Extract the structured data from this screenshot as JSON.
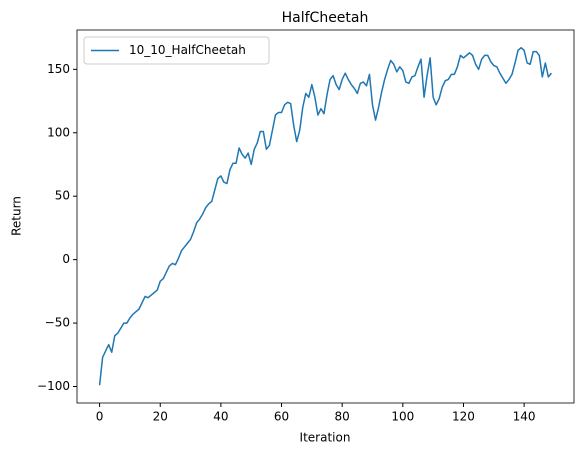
{
  "chart_data": {
    "type": "line",
    "title": "HalfCheetah",
    "x_label": "Iteration",
    "y_label": "Return",
    "x": [
      0,
      1,
      2,
      3,
      4,
      5,
      6,
      7,
      8,
      9,
      10,
      11,
      12,
      13,
      14,
      15,
      16,
      17,
      18,
      19,
      20,
      21,
      22,
      23,
      24,
      25,
      26,
      27,
      28,
      29,
      30,
      31,
      32,
      33,
      34,
      35,
      36,
      37,
      38,
      39,
      40,
      41,
      42,
      43,
      44,
      45,
      46,
      47,
      48,
      49,
      50,
      51,
      52,
      53,
      54,
      55,
      56,
      57,
      58,
      59,
      60,
      61,
      62,
      63,
      64,
      65,
      66,
      67,
      68,
      69,
      70,
      71,
      72,
      73,
      74,
      75,
      76,
      77,
      78,
      79,
      80,
      81,
      82,
      83,
      84,
      85,
      86,
      87,
      88,
      89,
      90,
      91,
      92,
      93,
      94,
      95,
      96,
      97,
      98,
      99,
      100,
      101,
      102,
      103,
      104,
      105,
      106,
      107,
      108,
      109,
      110,
      111,
      112,
      113,
      114,
      115,
      116,
      117,
      118,
      119,
      120,
      121,
      122,
      123,
      124,
      125,
      126,
      127,
      128,
      129,
      130,
      131,
      132,
      133,
      134,
      135,
      136,
      137,
      138,
      139,
      140,
      141,
      142,
      143,
      144,
      145,
      146,
      147,
      148,
      149
    ],
    "series": [
      {
        "name": "10_10_HalfCheetah",
        "color": "#1f77b4",
        "values": [
          -99,
          -77,
          -72,
          -67,
          -73,
          -60,
          -58,
          -54,
          -50,
          -50,
          -46,
          -43,
          -41,
          -39,
          -34,
          -29,
          -30,
          -28,
          -26,
          -24,
          -17,
          -15,
          -10,
          -5,
          -3,
          -4,
          1,
          7,
          10,
          13,
          16,
          22,
          29,
          32,
          36,
          41,
          44,
          46,
          55,
          64,
          66,
          61,
          60,
          71,
          76,
          76,
          88,
          83,
          80,
          84,
          75,
          87,
          92,
          101,
          101,
          87,
          90,
          102,
          114,
          116,
          116,
          122,
          124,
          123,
          106,
          93,
          102,
          120,
          131,
          128,
          138,
          128,
          114,
          119,
          115,
          130,
          142,
          145,
          138,
          134,
          142,
          147,
          142,
          138,
          135,
          131,
          139,
          140,
          137,
          146,
          122,
          110,
          120,
          132,
          142,
          150,
          157,
          154,
          148,
          152,
          149,
          140,
          139,
          144,
          145,
          152,
          158,
          128,
          145,
          159,
          128,
          122,
          127,
          136,
          141,
          142,
          146,
          146,
          152,
          161,
          159,
          161,
          163,
          161,
          154,
          150,
          158,
          161,
          161,
          156,
          153,
          152,
          147,
          143,
          139,
          142,
          146,
          155,
          165,
          167,
          165,
          155,
          154,
          164,
          164,
          161,
          144,
          155,
          144,
          147
        ]
      }
    ],
    "xlim": [
      -7.45,
      156.45
    ],
    "ylim": [
      -113,
      181
    ],
    "xticks": [
      0,
      20,
      40,
      60,
      80,
      100,
      120,
      140
    ],
    "yticks": [
      {
        "value": -100,
        "label": "−100"
      },
      {
        "value": -50,
        "label": "−50"
      },
      0,
      50,
      100,
      150
    ],
    "legend": "upper left"
  }
}
